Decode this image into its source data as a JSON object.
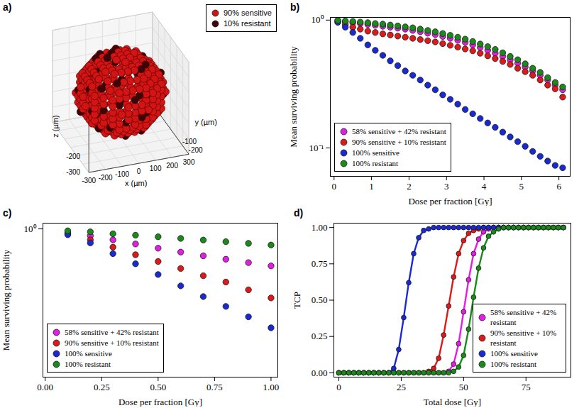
{
  "chart_data": [
    {
      "title": "a)",
      "type": "scatter3d",
      "xlabel": "x (µm)",
      "ylabel": "y (µm)",
      "zlabel": "z (µm)",
      "xlim": [
        -300,
        300
      ],
      "ylim": [
        -300,
        300
      ],
      "zlim": [
        -300,
        300
      ],
      "xticks": [
        -300,
        -200,
        -100,
        0,
        100,
        200,
        300
      ],
      "yticks": [
        -200,
        -100
      ],
      "zticks": [
        -300,
        -200
      ],
      "legend": "upper right",
      "series": [
        {
          "name": "90% sensitive",
          "color": "#d21414",
          "marker": "circle"
        },
        {
          "name": "10% resistant",
          "color": "#3c0606",
          "marker": "circle"
        }
      ]
    },
    {
      "title": "b)",
      "type": "scatter",
      "log": "y",
      "xlabel": "Dose per fraction [Gy]",
      "ylabel": "Mean surviving probability",
      "xlim": [
        -0.1,
        6.3
      ],
      "xticks": [
        0,
        1,
        2,
        3,
        4,
        5,
        6
      ],
      "ylim": [
        0.06,
        1.05
      ],
      "yticks": [
        {
          "value": 1,
          "label": "10⁰"
        },
        {
          "value": 0.1,
          "label": "10⁻¹"
        }
      ],
      "legend": "lower left",
      "grid": false,
      "x": [
        0.1,
        0.3,
        0.5,
        0.7,
        0.9,
        1.1,
        1.3,
        1.5,
        1.7,
        1.9,
        2.1,
        2.3,
        2.5,
        2.7,
        2.9,
        3.1,
        3.3,
        3.5,
        3.7,
        3.9,
        4.1,
        4.3,
        4.5,
        4.7,
        4.9,
        5.1,
        5.3,
        5.5,
        5.7,
        5.9,
        6.1
      ],
      "series": [
        {
          "name": "58% sensitive + 42% resistant",
          "color": "#e21ee2",
          "marker": "circle",
          "values": [
            0.99,
            0.97,
            0.955,
            0.94,
            0.925,
            0.91,
            0.895,
            0.88,
            0.865,
            0.85,
            0.83,
            0.81,
            0.79,
            0.77,
            0.745,
            0.72,
            0.695,
            0.67,
            0.64,
            0.61,
            0.58,
            0.55,
            0.52,
            0.49,
            0.46,
            0.43,
            0.4,
            0.37,
            0.34,
            0.31,
            0.285
          ]
        },
        {
          "name": "90% sensitive + 10% resistant",
          "color": "#dc1a1a",
          "marker": "circle",
          "values": [
            0.97,
            0.92,
            0.88,
            0.85,
            0.82,
            0.8,
            0.78,
            0.765,
            0.75,
            0.735,
            0.72,
            0.705,
            0.69,
            0.675,
            0.655,
            0.635,
            0.615,
            0.595,
            0.575,
            0.55,
            0.525,
            0.5,
            0.475,
            0.45,
            0.42,
            0.395,
            0.37,
            0.34,
            0.31,
            0.29,
            0.25
          ]
        },
        {
          "name": "100% sensitive",
          "color": "#1a2ad2",
          "marker": "circle",
          "values": [
            0.96,
            0.88,
            0.8,
            0.72,
            0.64,
            0.58,
            0.53,
            0.48,
            0.44,
            0.4,
            0.37,
            0.34,
            0.31,
            0.285,
            0.26,
            0.24,
            0.22,
            0.2,
            0.185,
            0.17,
            0.157,
            0.145,
            0.133,
            0.122,
            0.112,
            0.103,
            0.094,
            0.086,
            0.079,
            0.073,
            0.07
          ]
        },
        {
          "name": "100% resistant",
          "color": "#1a8a1a",
          "marker": "circle",
          "values": [
            0.995,
            0.985,
            0.975,
            0.965,
            0.955,
            0.94,
            0.93,
            0.915,
            0.9,
            0.885,
            0.87,
            0.85,
            0.83,
            0.81,
            0.785,
            0.76,
            0.735,
            0.71,
            0.68,
            0.65,
            0.62,
            0.59,
            0.555,
            0.52,
            0.49,
            0.455,
            0.42,
            0.39,
            0.355,
            0.325,
            0.3
          ]
        }
      ]
    },
    {
      "title": "c)",
      "type": "scatter",
      "log": "y",
      "xlabel": "Dose per fraction [Gy]",
      "ylabel": "Mean surviving probability",
      "xlim": [
        -0.01,
        1.03
      ],
      "xticks": [
        {
          "value": 0,
          "label": "0.00"
        },
        {
          "value": 0.25,
          "label": "0.25"
        },
        {
          "value": 0.5,
          "label": "0.50"
        },
        {
          "value": 0.75,
          "label": "0.75"
        },
        {
          "value": 1,
          "label": "1.00"
        }
      ],
      "ylim": [
        0.465,
        1.03
      ],
      "yticks": [
        {
          "value": 1,
          "label": "10⁰"
        }
      ],
      "legend": "lower left",
      "grid": false,
      "x": [
        0.1,
        0.2,
        0.3,
        0.4,
        0.5,
        0.6,
        0.7,
        0.8,
        0.9,
        1.0
      ],
      "series": [
        {
          "name": "58% sensitive + 42% resistant",
          "color": "#e21ee2",
          "marker": "circle",
          "values": [
            0.98,
            0.965,
            0.945,
            0.925,
            0.905,
            0.887,
            0.87,
            0.855,
            0.84,
            0.826
          ]
        },
        {
          "name": "90% sensitive + 10% resistant",
          "color": "#dc1a1a",
          "marker": "circle",
          "values": [
            0.975,
            0.945,
            0.91,
            0.875,
            0.845,
            0.815,
            0.785,
            0.76,
            0.73,
            0.7
          ]
        },
        {
          "name": "100% sensitive",
          "color": "#1a2ad2",
          "marker": "circle",
          "values": [
            0.97,
            0.93,
            0.88,
            0.835,
            0.79,
            0.745,
            0.705,
            0.67,
            0.635,
            0.6
          ]
        },
        {
          "name": "100% resistant",
          "color": "#1a8a1a",
          "marker": "circle",
          "values": [
            0.99,
            0.985,
            0.975,
            0.968,
            0.96,
            0.952,
            0.944,
            0.936,
            0.928,
            0.92
          ]
        }
      ]
    },
    {
      "title": "d)",
      "type": "line",
      "marker": "circle",
      "line_style": "solid",
      "xlabel": "Total dose [Gy]",
      "ylabel": "TCP",
      "xlim": [
        -2,
        93
      ],
      "xticks": [
        0,
        25,
        50,
        75
      ],
      "ylim": [
        -0.03,
        1.03
      ],
      "yticks": [
        {
          "value": 0,
          "label": "0.00"
        },
        {
          "value": 0.25,
          "label": "0.25"
        },
        {
          "value": 0.5,
          "label": "0.50"
        },
        {
          "value": 0.75,
          "label": "0.75"
        },
        {
          "value": 1,
          "label": "1.00"
        }
      ],
      "legend": "lower right",
      "grid": false,
      "x": [
        0,
        2,
        4,
        6,
        8,
        10,
        12,
        14,
        16,
        18,
        20,
        22,
        24,
        26,
        28,
        30,
        32,
        34,
        36,
        38,
        40,
        42,
        44,
        46,
        48,
        50,
        52,
        54,
        56,
        58,
        60,
        62,
        64,
        66,
        68,
        70,
        72,
        74,
        76,
        78,
        80,
        82,
        84,
        86,
        88,
        90
      ],
      "series": [
        {
          "name": "58% sensitive + 42% resistant",
          "color": "#e21ee2",
          "values": [
            0,
            0,
            0,
            0,
            0,
            0,
            0,
            0,
            0,
            0,
            0,
            0,
            0,
            0,
            0,
            0,
            0,
            0,
            0,
            0,
            0,
            0,
            0.01,
            0.06,
            0.2,
            0.42,
            0.64,
            0.82,
            0.92,
            0.97,
            0.99,
            1,
            1,
            1,
            1,
            1,
            1,
            1,
            1,
            1,
            1,
            1,
            1,
            1,
            1,
            1
          ]
        },
        {
          "name": "90% sensitive + 10% resistant",
          "color": "#dc1a1a",
          "values": [
            0,
            0,
            0,
            0,
            0,
            0,
            0,
            0,
            0,
            0,
            0,
            0,
            0,
            0,
            0,
            0,
            0,
            0,
            0.01,
            0.03,
            0.1,
            0.26,
            0.46,
            0.66,
            0.82,
            0.91,
            0.96,
            0.98,
            0.99,
            1,
            1,
            1,
            1,
            1,
            1,
            1,
            1,
            1,
            1,
            1,
            1,
            1,
            1,
            1,
            1,
            1
          ]
        },
        {
          "name": "100% sensitive",
          "color": "#1a2ad2",
          "values": [
            0,
            0,
            0,
            0,
            0,
            0,
            0,
            0,
            0,
            0,
            0,
            0.03,
            0.16,
            0.38,
            0.62,
            0.82,
            0.93,
            0.98,
            0.99,
            1,
            1,
            1,
            1,
            1,
            1,
            1,
            1,
            1,
            1,
            1,
            1,
            1,
            1,
            1,
            1,
            1,
            1,
            1,
            1,
            1,
            1,
            1,
            1,
            1,
            1,
            1
          ]
        },
        {
          "name": "100% resistant",
          "color": "#1a8a1a",
          "values": [
            0,
            0,
            0,
            0,
            0,
            0,
            0,
            0,
            0,
            0,
            0,
            0,
            0,
            0,
            0,
            0,
            0,
            0,
            0,
            0,
            0,
            0,
            0,
            0.01,
            0.04,
            0.12,
            0.3,
            0.52,
            0.72,
            0.86,
            0.94,
            0.97,
            0.99,
            1,
            1,
            1,
            1,
            1,
            1,
            1,
            1,
            1,
            1,
            1,
            1,
            1
          ]
        }
      ]
    }
  ]
}
